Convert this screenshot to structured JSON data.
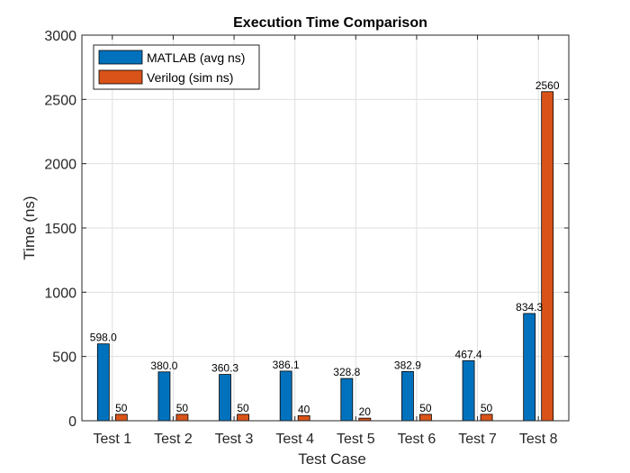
{
  "chart_data": {
    "type": "bar",
    "title": "Execution Time Comparison",
    "xlabel": "Test Case",
    "ylabel": "Time (ns)",
    "ylim": [
      0,
      3000
    ],
    "yticks": [
      0,
      500,
      1000,
      1500,
      2000,
      2500,
      3000
    ],
    "grid": true,
    "legend_position": "top-left",
    "categories": [
      "Test 1",
      "Test 2",
      "Test 3",
      "Test 4",
      "Test 5",
      "Test 6",
      "Test 7",
      "Test 8"
    ],
    "series": [
      {
        "name": "MATLAB (avg ns)",
        "color": "#0072BD",
        "values": [
          598.0,
          380.0,
          360.3,
          386.1,
          328.8,
          382.9,
          467.4,
          834.3
        ],
        "labels": [
          "598.0",
          "380.0",
          "360.3",
          "386.1",
          "328.8",
          "382.9",
          "467.4",
          "834.3"
        ]
      },
      {
        "name": "Verilog (sim ns)",
        "color": "#D95319",
        "values": [
          50,
          50,
          50,
          40,
          20,
          50,
          50,
          2560
        ],
        "labels": [
          "50",
          "50",
          "50",
          "40",
          "20",
          "50",
          "50",
          "2560"
        ]
      }
    ]
  }
}
